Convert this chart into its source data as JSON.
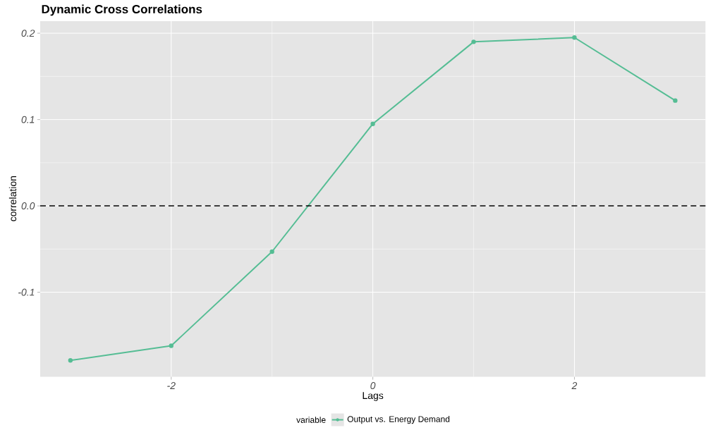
{
  "chart_data": {
    "type": "line",
    "title": "Dynamic Cross Correlations",
    "xlabel": "Lags",
    "ylabel": "correlation",
    "legend_title": "variable",
    "x": [
      -3,
      -2,
      -1,
      0,
      1,
      2,
      3
    ],
    "series": [
      {
        "name": "Output vs. Energy Demand",
        "color": "#55bd94",
        "values": [
          -0.179,
          -0.162,
          -0.053,
          0.095,
          0.19,
          0.195,
          0.122
        ]
      }
    ],
    "xlim": [
      -3.3,
      3.3
    ],
    "ylim": [
      -0.198,
      0.214
    ],
    "xticks": [
      -2,
      0,
      2
    ],
    "yticks": [
      -0.1,
      {
        "value": 0,
        "label": "0.0"
      },
      0.1,
      0.2
    ],
    "ref_lines": [
      {
        "axis": "y",
        "value": 0,
        "color": "#000000",
        "line_style": "dashed"
      }
    ],
    "grid": true,
    "legend": "bottom",
    "marker": "circle",
    "line_style": "solid"
  }
}
